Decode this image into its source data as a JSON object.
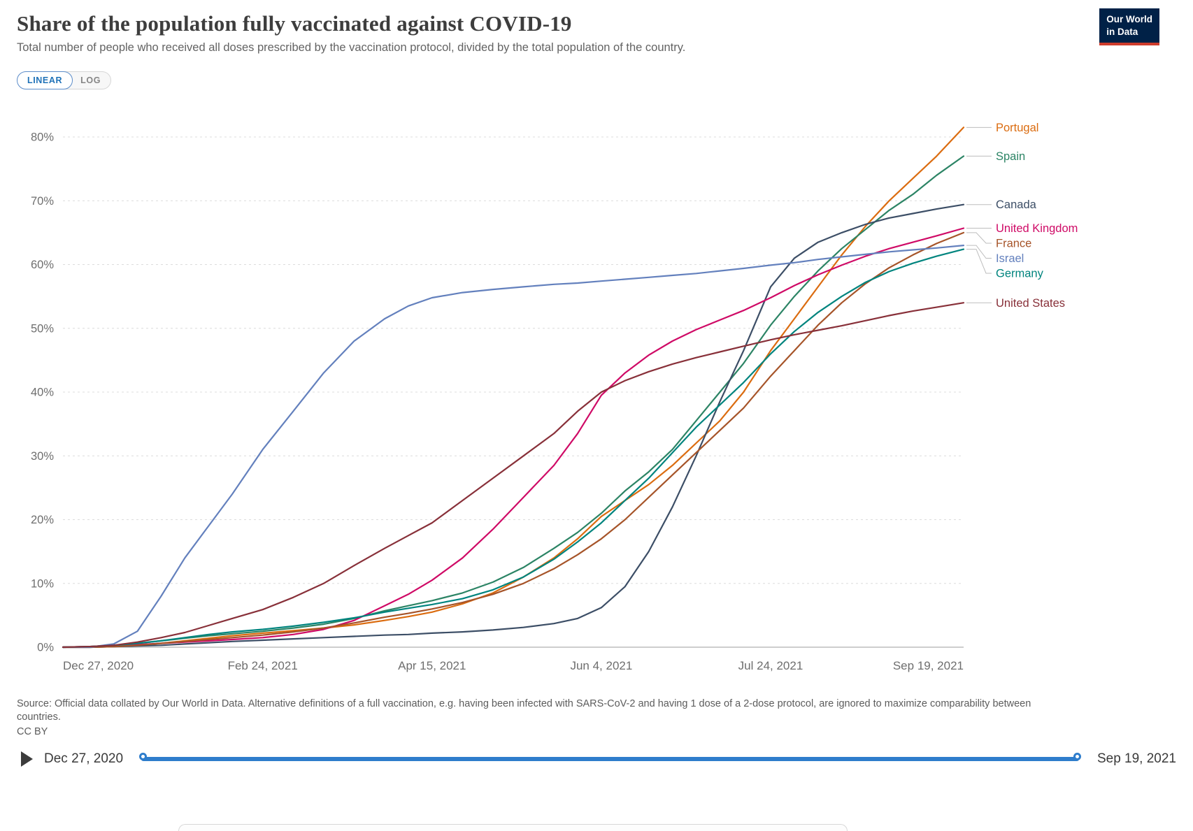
{
  "header": {
    "title": "Share of the population fully vaccinated against COVID-19",
    "subtitle": "Total number of people who received all doses prescribed by the vaccination protocol, divided by the total population of the country.",
    "logo": {
      "line1": "Our World",
      "line2": "in Data"
    }
  },
  "controls": {
    "linear_label": "LINEAR",
    "log_label": "LOG"
  },
  "chart_data": {
    "type": "line",
    "title": "Share of the population fully vaccinated against COVID-19",
    "x_tick_labels": [
      "Dec 27, 2020",
      "Feb 24, 2021",
      "Apr 15, 2021",
      "Jun 4, 2021",
      "Jul 24, 2021",
      "Sep 19, 2021"
    ],
    "x_tick_days": [
      0,
      59,
      109,
      159,
      209,
      266
    ],
    "x_range_days": [
      0,
      266
    ],
    "y_ticks": [
      0,
      10,
      20,
      30,
      40,
      50,
      60,
      70,
      80
    ],
    "y_tick_suffix": "%",
    "ylim": [
      0,
      82
    ],
    "grid": true,
    "legend_position": "right-labels",
    "days": [
      0,
      8,
      15,
      22,
      29,
      36,
      43,
      50,
      59,
      68,
      77,
      86,
      95,
      102,
      109,
      118,
      127,
      136,
      145,
      152,
      159,
      166,
      173,
      180,
      187,
      194,
      201,
      209,
      216,
      223,
      230,
      237,
      244,
      251,
      258,
      266
    ],
    "series": [
      {
        "name": "Portugal",
        "color": "#DB6C10",
        "values": [
          0,
          0,
          0.1,
          0.3,
          0.6,
          1.0,
          1.4,
          1.8,
          2.2,
          2.6,
          3.0,
          3.5,
          4.2,
          4.8,
          5.5,
          6.8,
          8.5,
          11,
          14,
          17,
          20.5,
          23,
          25.5,
          28.5,
          32,
          35.5,
          40,
          46.5,
          51.5,
          56.5,
          61.5,
          66,
          70,
          73.5,
          77,
          81.5
        ]
      },
      {
        "name": "Spain",
        "color": "#2C8465",
        "values": [
          0,
          0.1,
          0.3,
          0.6,
          1.0,
          1.4,
          1.8,
          2.1,
          2.5,
          3.0,
          3.6,
          4.5,
          5.7,
          6.5,
          7.3,
          8.5,
          10.2,
          12.5,
          15.5,
          18,
          21,
          24.5,
          27.5,
          31,
          35.5,
          40,
          44.5,
          50.5,
          55,
          59,
          62.5,
          65.5,
          68.5,
          71,
          74,
          77
        ]
      },
      {
        "name": "Canada",
        "color": "#3C4E66",
        "values": [
          0,
          0,
          0.1,
          0.2,
          0.3,
          0.5,
          0.7,
          0.9,
          1.1,
          1.3,
          1.5,
          1.7,
          1.9,
          2.0,
          2.2,
          2.4,
          2.7,
          3.1,
          3.7,
          4.5,
          6.2,
          9.5,
          15,
          22,
          30,
          38.5,
          46.5,
          56.5,
          61,
          63.5,
          65,
          66.3,
          67.3,
          68,
          68.7,
          69.4
        ]
      },
      {
        "name": "United Kingdom",
        "color": "#CF0A66",
        "values": [
          0,
          0.1,
          0.2,
          0.4,
          0.6,
          0.8,
          1.0,
          1.2,
          1.5,
          2.0,
          2.8,
          4.2,
          6.5,
          8.3,
          10.5,
          14,
          18.5,
          23.5,
          28.5,
          33.5,
          39.5,
          43,
          45.8,
          48,
          49.8,
          51.3,
          52.8,
          54.8,
          56.7,
          58.4,
          59.9,
          61.3,
          62.5,
          63.5,
          64.5,
          65.7
        ]
      },
      {
        "name": "France",
        "color": "#A65429",
        "values": [
          0,
          0,
          0.1,
          0.3,
          0.6,
          0.9,
          1.2,
          1.5,
          1.9,
          2.4,
          3.0,
          3.8,
          4.7,
          5.3,
          6.0,
          7.0,
          8.3,
          10,
          12.3,
          14.5,
          17,
          20,
          23.5,
          27,
          30.5,
          34,
          37.5,
          42.5,
          46.5,
          50.5,
          54,
          57,
          59.5,
          61.5,
          63.3,
          65
        ]
      },
      {
        "name": "Israel",
        "color": "#6380BD",
        "values": [
          0,
          0,
          0.5,
          2.5,
          8,
          14,
          19,
          24,
          31,
          37,
          43,
          48,
          51.5,
          53.5,
          54.8,
          55.6,
          56.1,
          56.5,
          56.9,
          57.1,
          57.4,
          57.7,
          58.0,
          58.3,
          58.6,
          59.0,
          59.4,
          59.9,
          60.3,
          60.8,
          61.2,
          61.6,
          62.0,
          62.3,
          62.6,
          63.0
        ]
      },
      {
        "name": "Germany",
        "color": "#00847E",
        "values": [
          0,
          0.1,
          0.3,
          0.6,
          1.0,
          1.5,
          2.0,
          2.4,
          2.8,
          3.3,
          3.9,
          4.6,
          5.5,
          6.1,
          6.7,
          7.6,
          9,
          11,
          13.8,
          16.5,
          19.5,
          23,
          26.5,
          30.5,
          34.5,
          38,
          41.5,
          46,
          49.5,
          52.5,
          55,
          57.2,
          58.9,
          60.2,
          61.3,
          62.4
        ]
      },
      {
        "name": "United States",
        "color": "#883039",
        "values": [
          0,
          0.1,
          0.3,
          0.8,
          1.5,
          2.3,
          3.4,
          4.5,
          5.9,
          7.8,
          10,
          12.8,
          15.5,
          17.5,
          19.5,
          23,
          26.5,
          30,
          33.5,
          37,
          40,
          41.8,
          43.2,
          44.4,
          45.4,
          46.3,
          47.2,
          48.2,
          49,
          49.7,
          50.4,
          51.2,
          52,
          52.7,
          53.3,
          54
        ]
      }
    ]
  },
  "footer": {
    "source": "Source: Official data collated by Our World in Data. Alternative definitions of a full vaccination, e.g. having been infected with SARS-CoV-2 and having 1 dose of a 2-dose protocol, are ignored to maximize comparability between countries.",
    "license": "CC BY"
  },
  "timeline": {
    "start_label": "Dec 27, 2020",
    "end_label": "Sep 19, 2021"
  }
}
